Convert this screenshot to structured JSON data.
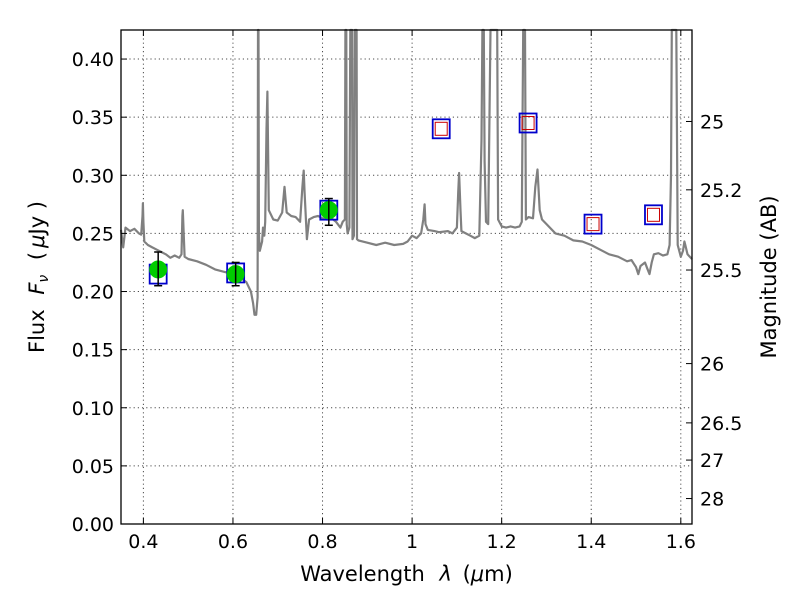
{
  "chart_data": {
    "type": "scatter",
    "title": "",
    "xlabel_text": "Wavelength",
    "xlabel_symbol": "λ",
    "xlabel_unit_open": "(",
    "xlabel_unit_mu": "μ",
    "xlabel_unit_rest": "m)",
    "ylabel_text": "Flux",
    "ylabel_symbol": "F",
    "ylabel_sub": "ν",
    "ylabel_unit_open": "(",
    "ylabel_unit_mu": "μ",
    "ylabel_unit_rest": "Jy )",
    "y2label": "Magnitude (AB)",
    "xlim": [
      0.35,
      1.625
    ],
    "ylim": [
      0.0,
      0.425
    ],
    "grid": true,
    "x_ticks": [
      {
        "value": 0.4,
        "label": "0.4"
      },
      {
        "value": 0.6,
        "label": "0.6"
      },
      {
        "value": 0.8,
        "label": "0.8"
      },
      {
        "value": 1.0,
        "label": "1"
      },
      {
        "value": 1.2,
        "label": "1.2"
      },
      {
        "value": 1.4,
        "label": "1.4"
      },
      {
        "value": 1.6,
        "label": "1.6"
      }
    ],
    "y_ticks": [
      {
        "value": 0.0,
        "label": "0.00"
      },
      {
        "value": 0.05,
        "label": "0.05"
      },
      {
        "value": 0.1,
        "label": "0.10"
      },
      {
        "value": 0.15,
        "label": "0.15"
      },
      {
        "value": 0.2,
        "label": "0.20"
      },
      {
        "value": 0.25,
        "label": "0.25"
      },
      {
        "value": 0.3,
        "label": "0.30"
      },
      {
        "value": 0.35,
        "label": "0.35"
      },
      {
        "value": 0.4,
        "label": "0.40"
      }
    ],
    "y2_ticks": [
      {
        "flux": 0.3463,
        "label": "25"
      },
      {
        "flux": 0.2875,
        "label": "25.2"
      },
      {
        "flux": 0.2185,
        "label": "25.5"
      },
      {
        "flux": 0.138,
        "label": "26"
      },
      {
        "flux": 0.087,
        "label": "26.5"
      },
      {
        "flux": 0.055,
        "label": "27"
      },
      {
        "flux": 0.0219,
        "label": "28"
      }
    ],
    "colors": {
      "spectrum": "#808080",
      "observed_point": "#00cc00",
      "model_box": "#0000cc",
      "upper_box": "#cc0000",
      "errorbar": "#000000"
    },
    "series": [
      {
        "kind": "line",
        "points": [
          [
            0.35,
            0.253
          ],
          [
            0.355,
            0.238
          ],
          [
            0.36,
            0.255
          ],
          [
            0.37,
            0.252
          ],
          [
            0.38,
            0.254
          ],
          [
            0.39,
            0.25
          ],
          [
            0.395,
            0.249
          ],
          [
            0.398,
            0.265
          ],
          [
            0.399,
            0.276
          ],
          [
            0.4,
            0.26
          ],
          [
            0.402,
            0.243
          ],
          [
            0.41,
            0.24
          ],
          [
            0.42,
            0.238
          ],
          [
            0.43,
            0.236
          ],
          [
            0.44,
            0.234
          ],
          [
            0.45,
            0.232
          ],
          [
            0.46,
            0.229
          ],
          [
            0.47,
            0.231
          ],
          [
            0.48,
            0.229
          ],
          [
            0.485,
            0.232
          ],
          [
            0.487,
            0.265
          ],
          [
            0.488,
            0.27
          ],
          [
            0.49,
            0.25
          ],
          [
            0.492,
            0.23
          ],
          [
            0.5,
            0.228
          ],
          [
            0.52,
            0.226
          ],
          [
            0.54,
            0.223
          ],
          [
            0.56,
            0.219
          ],
          [
            0.58,
            0.217
          ],
          [
            0.6,
            0.215
          ],
          [
            0.62,
            0.211
          ],
          [
            0.63,
            0.208
          ],
          [
            0.64,
            0.2
          ],
          [
            0.645,
            0.19
          ],
          [
            0.648,
            0.18
          ],
          [
            0.652,
            0.18
          ],
          [
            0.655,
            0.195
          ],
          [
            0.656,
            0.425
          ],
          [
            0.657,
            0.425
          ],
          [
            0.658,
            0.25
          ],
          [
            0.66,
            0.235
          ],
          [
            0.665,
            0.243
          ],
          [
            0.667,
            0.255
          ],
          [
            0.67,
            0.248
          ],
          [
            0.672,
            0.26
          ],
          [
            0.675,
            0.34
          ],
          [
            0.677,
            0.372
          ],
          [
            0.68,
            0.27
          ],
          [
            0.69,
            0.262
          ],
          [
            0.7,
            0.261
          ],
          [
            0.71,
            0.268
          ],
          [
            0.715,
            0.29
          ],
          [
            0.72,
            0.268
          ],
          [
            0.73,
            0.265
          ],
          [
            0.74,
            0.264
          ],
          [
            0.75,
            0.26
          ],
          [
            0.755,
            0.29
          ],
          [
            0.758,
            0.304
          ],
          [
            0.76,
            0.285
          ],
          [
            0.765,
            0.245
          ],
          [
            0.77,
            0.262
          ],
          [
            0.78,
            0.264
          ],
          [
            0.79,
            0.265
          ],
          [
            0.8,
            0.263
          ],
          [
            0.81,
            0.262
          ],
          [
            0.82,
            0.263
          ],
          [
            0.83,
            0.26
          ],
          [
            0.84,
            0.255
          ],
          [
            0.845,
            0.26
          ],
          [
            0.85,
            0.262
          ],
          [
            0.851,
            0.425
          ],
          [
            0.853,
            0.425
          ],
          [
            0.854,
            0.258
          ],
          [
            0.856,
            0.25
          ],
          [
            0.86,
            0.255
          ],
          [
            0.862,
            0.425
          ],
          [
            0.866,
            0.425
          ],
          [
            0.867,
            0.245
          ],
          [
            0.87,
            0.248
          ],
          [
            0.872,
            0.425
          ],
          [
            0.876,
            0.425
          ],
          [
            0.877,
            0.245
          ],
          [
            0.88,
            0.244
          ],
          [
            0.9,
            0.242
          ],
          [
            0.92,
            0.24
          ],
          [
            0.94,
            0.242
          ],
          [
            0.96,
            0.24
          ],
          [
            0.98,
            0.241
          ],
          [
            0.99,
            0.243
          ],
          [
            1.0,
            0.248
          ],
          [
            1.01,
            0.246
          ],
          [
            1.02,
            0.25
          ],
          [
            1.025,
            0.262
          ],
          [
            1.028,
            0.275
          ],
          [
            1.03,
            0.258
          ],
          [
            1.035,
            0.253
          ],
          [
            1.05,
            0.252
          ],
          [
            1.06,
            0.251
          ],
          [
            1.08,
            0.252
          ],
          [
            1.09,
            0.25
          ],
          [
            1.1,
            0.255
          ],
          [
            1.103,
            0.285
          ],
          [
            1.105,
            0.302
          ],
          [
            1.108,
            0.27
          ],
          [
            1.11,
            0.252
          ],
          [
            1.12,
            0.25
          ],
          [
            1.13,
            0.248
          ],
          [
            1.14,
            0.246
          ],
          [
            1.15,
            0.248
          ],
          [
            1.155,
            0.33
          ],
          [
            1.157,
            0.425
          ],
          [
            1.16,
            0.425
          ],
          [
            1.162,
            0.312
          ],
          [
            1.165,
            0.26
          ],
          [
            1.17,
            0.258
          ],
          [
            1.175,
            0.425
          ],
          [
            1.19,
            0.425
          ],
          [
            1.192,
            0.262
          ],
          [
            1.2,
            0.256
          ],
          [
            1.21,
            0.255
          ],
          [
            1.22,
            0.256
          ],
          [
            1.23,
            0.255
          ],
          [
            1.24,
            0.256
          ],
          [
            1.245,
            0.26
          ],
          [
            1.248,
            0.425
          ],
          [
            1.252,
            0.425
          ],
          [
            1.254,
            0.262
          ],
          [
            1.26,
            0.264
          ],
          [
            1.27,
            0.263
          ],
          [
            1.275,
            0.29
          ],
          [
            1.28,
            0.305
          ],
          [
            1.285,
            0.27
          ],
          [
            1.29,
            0.262
          ],
          [
            1.3,
            0.258
          ],
          [
            1.32,
            0.25
          ],
          [
            1.34,
            0.248
          ],
          [
            1.36,
            0.244
          ],
          [
            1.38,
            0.243
          ],
          [
            1.4,
            0.24
          ],
          [
            1.42,
            0.236
          ],
          [
            1.44,
            0.232
          ],
          [
            1.46,
            0.23
          ],
          [
            1.48,
            0.226
          ],
          [
            1.49,
            0.227
          ],
          [
            1.5,
            0.221
          ],
          [
            1.505,
            0.215
          ],
          [
            1.51,
            0.222
          ],
          [
            1.52,
            0.225
          ],
          [
            1.525,
            0.22
          ],
          [
            1.53,
            0.215
          ],
          [
            1.535,
            0.225
          ],
          [
            1.54,
            0.232
          ],
          [
            1.55,
            0.233
          ],
          [
            1.56,
            0.231
          ],
          [
            1.57,
            0.232
          ],
          [
            1.575,
            0.24
          ],
          [
            1.578,
            0.3
          ],
          [
            1.58,
            0.425
          ],
          [
            1.59,
            0.425
          ],
          [
            1.593,
            0.24
          ],
          [
            1.6,
            0.23
          ],
          [
            1.605,
            0.235
          ],
          [
            1.608,
            0.243
          ],
          [
            1.61,
            0.24
          ],
          [
            1.615,
            0.232
          ],
          [
            1.62,
            0.23
          ],
          [
            1.625,
            0.228
          ]
        ]
      },
      {
        "kind": "observed",
        "points": [
          {
            "x": 0.433,
            "y": 0.219,
            "yerr_low": 0.205,
            "yerr_high": 0.234
          },
          {
            "x": 0.606,
            "y": 0.215,
            "yerr_low": 0.205,
            "yerr_high": 0.225
          },
          {
            "x": 0.814,
            "y": 0.27,
            "yerr_low": 0.257,
            "yerr_high": 0.28
          }
        ]
      },
      {
        "kind": "model",
        "points": [
          {
            "x": 0.433,
            "y": 0.215
          },
          {
            "x": 0.606,
            "y": 0.216
          },
          {
            "x": 0.814,
            "y": 0.27
          },
          {
            "x": 1.065,
            "y": 0.34
          },
          {
            "x": 1.259,
            "y": 0.345
          },
          {
            "x": 1.404,
            "y": 0.258
          },
          {
            "x": 1.539,
            "y": 0.266
          }
        ]
      },
      {
        "kind": "upper",
        "points": [
          {
            "x": 1.065,
            "y": 0.34
          },
          {
            "x": 1.259,
            "y": 0.345
          },
          {
            "x": 1.404,
            "y": 0.258
          },
          {
            "x": 1.539,
            "y": 0.266
          }
        ]
      }
    ]
  }
}
